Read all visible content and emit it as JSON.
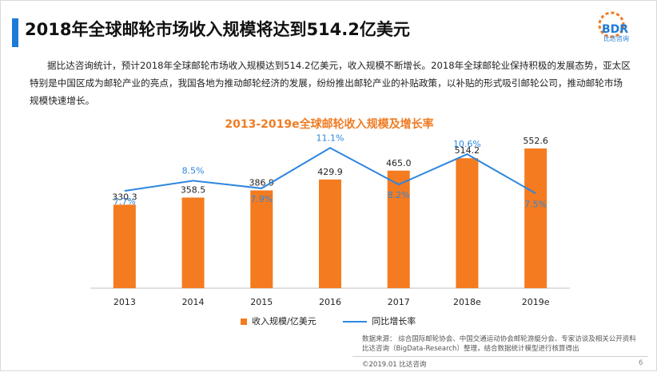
{
  "header": {
    "title": "2018年全球邮轮市场收入规模将达到514.2亿美元"
  },
  "logo": {
    "mark": "BDR",
    "subtitle": "比达咨询",
    "accent_color": "#f07c24",
    "brand_color": "#1e7bd8"
  },
  "intro": "据比达咨询统计，预计2018年全球邮轮市场收入规模达到514.2亿美元，收入规模不断增长。2018年全球邮轮业保持积极的发展态势，亚太区特别是中国区成为邮轮产业的亮点，我国各地为推动邮轮经济的发展，纷纷推出邮轮产业的补贴政策，以补贴的形式吸引邮轮公司，推动邮轮市场规模快速增长。",
  "chart_data": {
    "type": "bar",
    "title": "2013-2019e全球邮轮收入规模及增长率",
    "categories": [
      "2013",
      "2014",
      "2015",
      "2016",
      "2017",
      "2018e",
      "2019e"
    ],
    "series": [
      {
        "name": "收入规模/亿美元",
        "type": "bar",
        "color": "#f47b20",
        "values": [
          330.3,
          358.5,
          386.9,
          429.9,
          465.0,
          514.2,
          552.6
        ],
        "labels": [
          "330.3",
          "358.5",
          "386.9",
          "429.9",
          "465.0",
          "514.2",
          "552.6"
        ]
      },
      {
        "name": "同比增长率",
        "type": "line",
        "color": "#2e86de",
        "values": [
          7.7,
          8.5,
          7.9,
          11.1,
          8.2,
          10.6,
          7.5
        ],
        "labels": [
          "7.7%",
          "8.5%",
          "7.9%",
          "11.1%",
          "8.2%",
          "10.6%",
          "7.5%"
        ]
      }
    ],
    "ylim_bar": [
      0,
      600
    ],
    "ylim_line": [
      0,
      12
    ],
    "grid": false,
    "legend_position": "bottom"
  },
  "source": {
    "line1": "数据来源： 综合国际邮轮协会、中国交通运动协会邮轮游艇分会、专家访谈及相关公开资料",
    "line2": "比达咨询（BigData-Research）整理，结合数据统计模型进行核算得出"
  },
  "footer": {
    "copyright": "©2019.01  比达咨询",
    "page": "6"
  }
}
